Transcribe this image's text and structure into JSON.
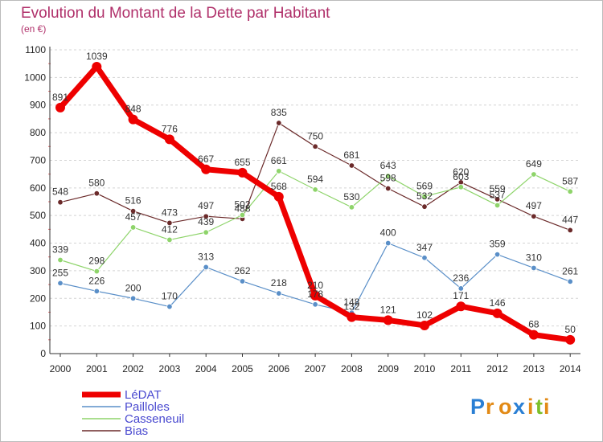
{
  "chart_data": {
    "type": "line",
    "title": "Evolution du Montant de la Dette par Habitant",
    "subtitle": "(en €)",
    "categories": [
      "2000",
      "2001",
      "2002",
      "2003",
      "2004",
      "2005",
      "2006",
      "2007",
      "2008",
      "2009",
      "2010",
      "2011",
      "2012",
      "2013",
      "2014"
    ],
    "ylim": [
      0,
      1100
    ],
    "yticks": [
      0,
      100,
      200,
      300,
      400,
      500,
      600,
      700,
      800,
      900,
      1000,
      1100
    ],
    "grid": "horizontal-dashed",
    "legend_position": "bottom-left",
    "series": [
      {
        "name": "LéDAT",
        "color": "#ee0000",
        "values": [
          891,
          1039,
          848,
          776,
          667,
          655,
          568,
          210,
          132,
          121,
          102,
          171,
          146,
          68,
          50
        ]
      },
      {
        "name": "Pailloles",
        "color": "#5a8fc8",
        "values": [
          255,
          226,
          200,
          170,
          313,
          262,
          218,
          178,
          148,
          400,
          347,
          236,
          359,
          310,
          261
        ]
      },
      {
        "name": "Casseneuil",
        "color": "#8ed46a",
        "values": [
          339,
          298,
          457,
          412,
          439,
          502,
          661,
          594,
          530,
          643,
          569,
          603,
          537,
          649,
          587
        ]
      },
      {
        "name": "Bias",
        "color": "#6b2a2a",
        "values": [
          548,
          580,
          516,
          473,
          497,
          488,
          835,
          750,
          681,
          598,
          532,
          620,
          559,
          497,
          447
        ]
      }
    ],
    "logo": [
      "P",
      "r",
      "o",
      "x",
      "i",
      "t",
      "i"
    ]
  }
}
